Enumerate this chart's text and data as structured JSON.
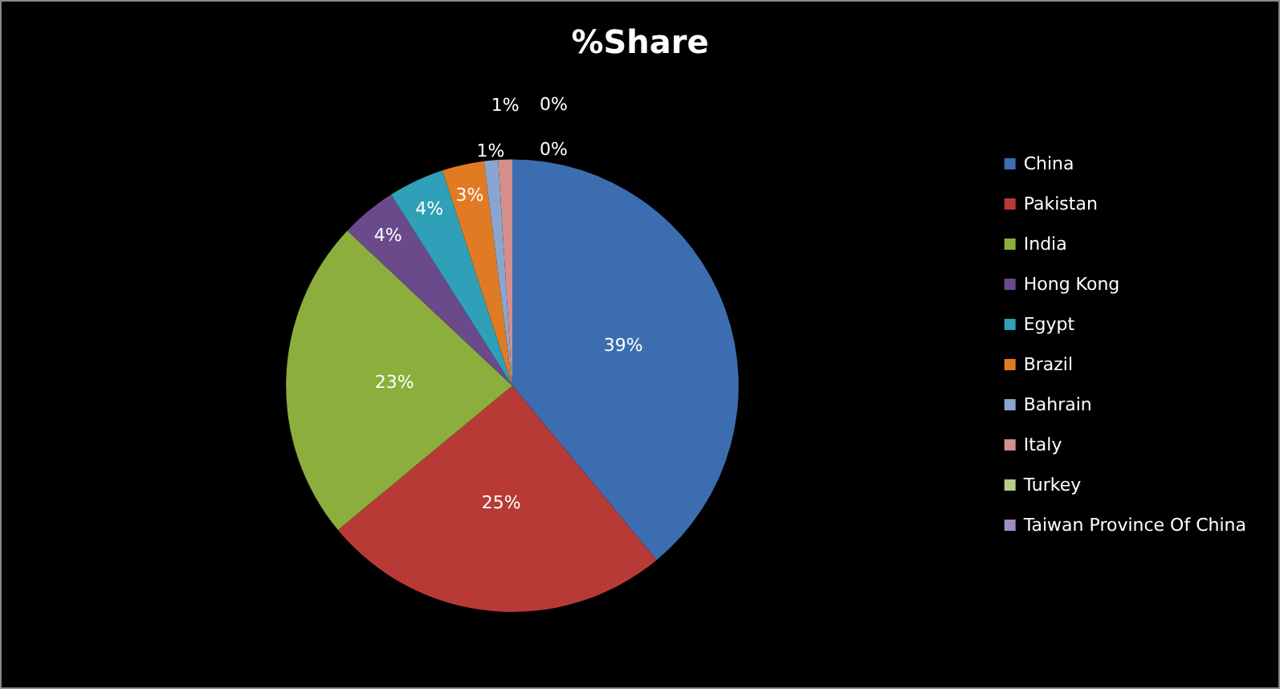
{
  "chart_data": {
    "type": "pie",
    "title": "%Share",
    "categories": [
      "China",
      "Pakistan",
      "India",
      "Hong Kong",
      "Egypt",
      "Brazil",
      "Bahrain",
      "Italy",
      "Turkey",
      "Taiwan Province Of China"
    ],
    "values": [
      39,
      25,
      23,
      4,
      4,
      3,
      1,
      1,
      0,
      0
    ],
    "value_labels": [
      "39%",
      "25%",
      "23%",
      "4%",
      "4%",
      "3%",
      "1%",
      "1%",
      "0%",
      "0%"
    ],
    "colors": [
      "#3c6db0",
      "#b83a37",
      "#8cae3c",
      "#6b4a8c",
      "#2fa0b8",
      "#e07b24",
      "#8aa6d0",
      "#d48f8c",
      "#b8cc8c",
      "#a08cc0"
    ],
    "legend": "right"
  }
}
